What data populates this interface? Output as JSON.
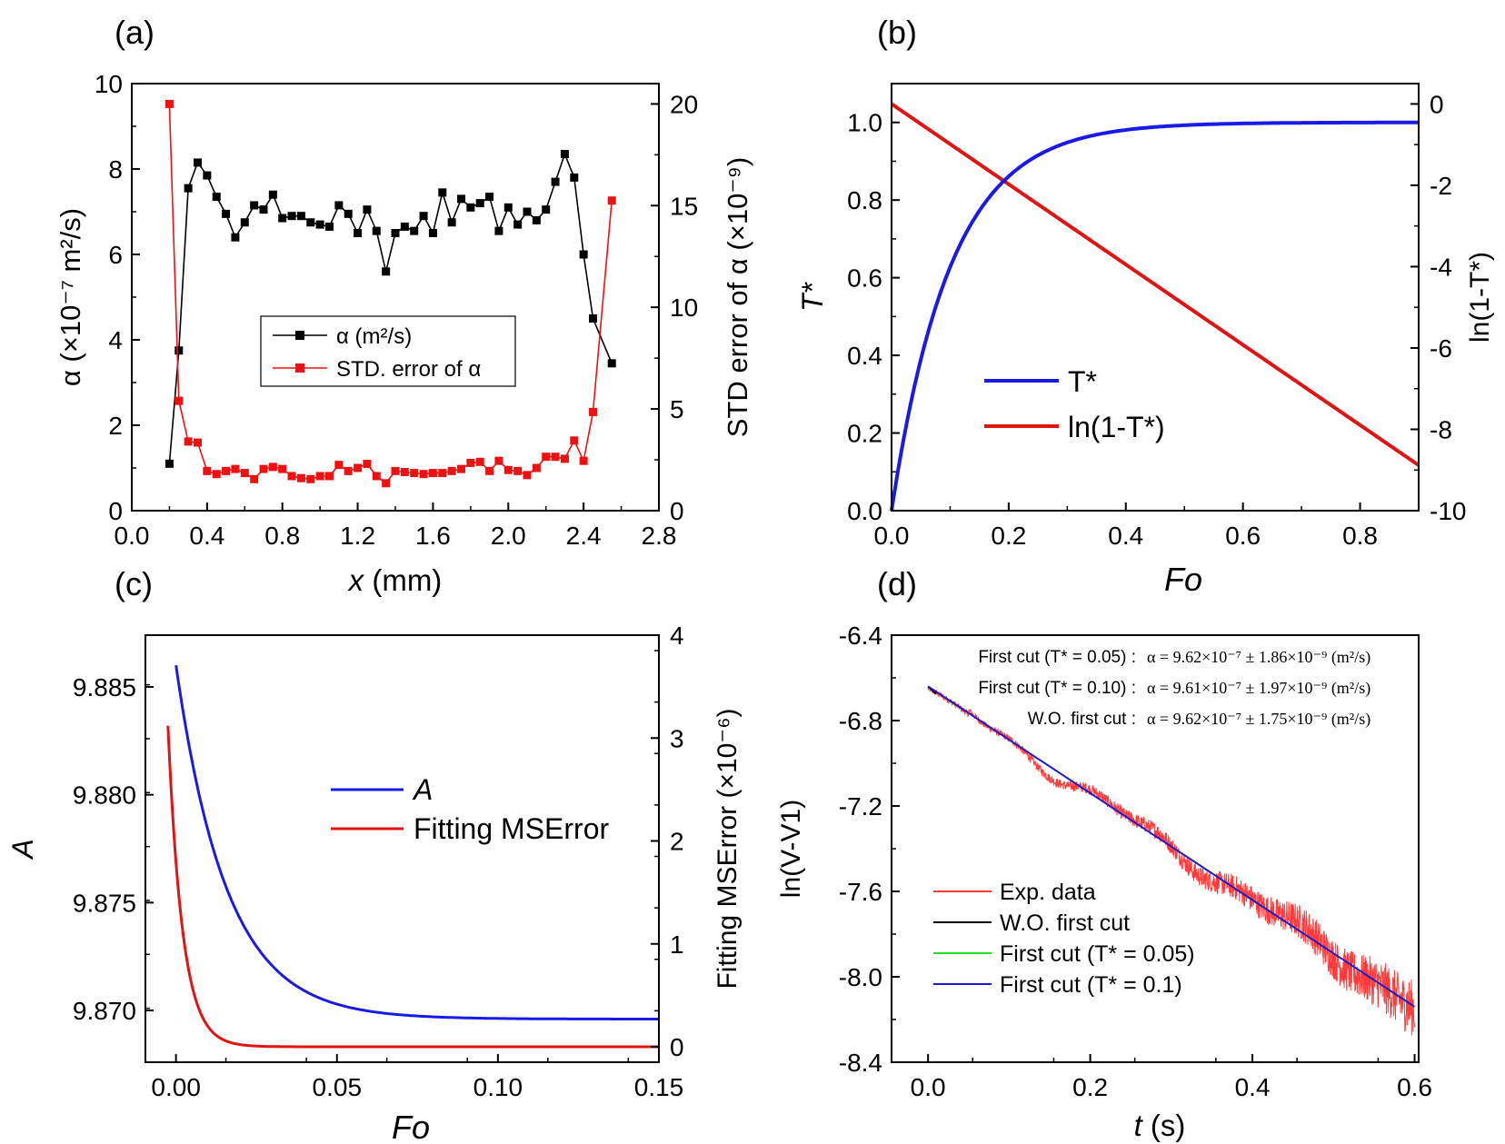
{
  "figure": {
    "panel_labels": [
      "(a)",
      "(b)",
      "(c)",
      "(d)"
    ]
  },
  "panels": {
    "a": {
      "xlabel": "x",
      "xunit": " (mm)",
      "ylabel_left": "α (×10⁻⁷ m²/s)",
      "ylabel_right": "STD error of α (×10⁻⁹)",
      "legend": [
        "α (m²/s)",
        "STD. error of α"
      ]
    },
    "b": {
      "xlabel": "Fo",
      "ylabel_left": "T*",
      "ylabel_right": "ln(1-T*)",
      "legend": [
        "T*",
        "ln(1-T*)"
      ]
    },
    "c": {
      "xlabel": "Fo",
      "ylabel_left": "A",
      "ylabel_right": "Fitting MSError (×10⁻⁶)",
      "legend": [
        "A",
        "Fitting MSError"
      ]
    },
    "d": {
      "xlabel": "t",
      "xunit": " (s)",
      "ylabel_left": "ln(V-V1)",
      "annotations": [
        {
          "label": "First cut (T* = 0.05) :",
          "formula": "α = 9.62×10⁻⁷ ± 1.86×10⁻⁹ (m²/s)"
        },
        {
          "label": "First cut (T* = 0.10) :",
          "formula": "α = 9.61×10⁻⁷ ± 1.97×10⁻⁹ (m²/s)"
        },
        {
          "label": "W.O. first cut :",
          "formula": "α = 9.62×10⁻⁷ ± 1.75×10⁻⁹ (m²/s)"
        }
      ],
      "legend": [
        "Exp. data",
        "W.O. first cut",
        "First cut (T* = 0.05)",
        "First cut (T* = 0.1)"
      ]
    }
  },
  "chart_data": [
    {
      "id": "a",
      "type": "line",
      "xlim": [
        0.0,
        2.8
      ],
      "xticks": [
        "0.0",
        "0.4",
        "0.8",
        "1.2",
        "1.6",
        "2.0",
        "2.4",
        "2.8"
      ],
      "ylim_left": [
        0,
        10
      ],
      "yticks_left": [
        "0",
        "2",
        "4",
        "6",
        "8",
        "10"
      ],
      "ylim_right": [
        0,
        21
      ],
      "yticks_right": [
        "0",
        "5",
        "10",
        "15",
        "20"
      ],
      "legend_position": "center",
      "series": [
        {
          "name": "α (m²/s)",
          "axis": "left",
          "color": "#000000",
          "marker": "square",
          "x": [
            0.2,
            0.25,
            0.3,
            0.35,
            0.4,
            0.45,
            0.5,
            0.55,
            0.6,
            0.65,
            0.7,
            0.75,
            0.8,
            0.85,
            0.9,
            0.95,
            1.0,
            1.05,
            1.1,
            1.15,
            1.2,
            1.25,
            1.3,
            1.35,
            1.4,
            1.45,
            1.5,
            1.55,
            1.6,
            1.65,
            1.7,
            1.75,
            1.8,
            1.85,
            1.9,
            1.95,
            2.0,
            2.05,
            2.1,
            2.15,
            2.2,
            2.25,
            2.3,
            2.35,
            2.4,
            2.45,
            2.55
          ],
          "y": [
            1.1,
            3.75,
            7.55,
            8.15,
            7.85,
            7.35,
            6.95,
            6.4,
            6.75,
            7.15,
            7.05,
            7.4,
            6.85,
            6.9,
            6.9,
            6.75,
            6.7,
            6.65,
            7.15,
            6.95,
            6.5,
            7.05,
            6.55,
            5.6,
            6.5,
            6.65,
            6.55,
            6.9,
            6.5,
            7.45,
            6.75,
            7.3,
            7.1,
            7.2,
            7.35,
            6.55,
            7.1,
            6.7,
            7.0,
            6.8,
            7.05,
            7.7,
            8.35,
            7.8,
            6.0,
            4.5,
            3.45
          ]
        },
        {
          "name": "STD. error of α",
          "axis": "right",
          "color": "#ee1111",
          "marker": "square",
          "x": [
            0.2,
            0.25,
            0.3,
            0.35,
            0.4,
            0.45,
            0.5,
            0.55,
            0.6,
            0.65,
            0.7,
            0.75,
            0.8,
            0.85,
            0.9,
            0.95,
            1.0,
            1.05,
            1.1,
            1.15,
            1.2,
            1.25,
            1.3,
            1.35,
            1.4,
            1.45,
            1.5,
            1.55,
            1.6,
            1.65,
            1.7,
            1.75,
            1.8,
            1.85,
            1.9,
            1.95,
            2.0,
            2.05,
            2.1,
            2.15,
            2.2,
            2.25,
            2.3,
            2.35,
            2.4,
            2.45,
            2.55
          ],
          "y": [
            20.0,
            5.4,
            3.4,
            3.35,
            1.95,
            1.8,
            1.95,
            2.05,
            1.85,
            1.55,
            2.05,
            2.15,
            2.05,
            1.7,
            1.6,
            1.55,
            1.7,
            1.7,
            2.25,
            1.95,
            2.1,
            2.3,
            1.7,
            1.35,
            1.95,
            1.9,
            1.85,
            1.8,
            1.85,
            1.85,
            1.95,
            2.05,
            2.35,
            2.4,
            1.95,
            2.45,
            2.0,
            1.95,
            1.75,
            2.1,
            2.65,
            2.65,
            2.55,
            3.45,
            2.45,
            4.85,
            15.25
          ]
        }
      ]
    },
    {
      "id": "b",
      "type": "line",
      "xlim": [
        0.0,
        0.9
      ],
      "xticks": [
        "0.0",
        "0.2",
        "0.4",
        "0.6",
        "0.8"
      ],
      "ylim_left": [
        0.0,
        1.1
      ],
      "yticks_left": [
        "0.0",
        "0.2",
        "0.4",
        "0.6",
        "0.8",
        "1.0"
      ],
      "ylim_right": [
        -10,
        0.5
      ],
      "yticks_right": [
        "0",
        "-2",
        "-4",
        "-6",
        "-8",
        "-10"
      ],
      "legend_position": "center",
      "series": [
        {
          "name": "T*",
          "axis": "left",
          "color": "#1a1ae6",
          "formula": "1-exp(-k*Fo)",
          "k": 9.87,
          "x_range": [
            0,
            0.9
          ]
        },
        {
          "name": "ln(1-T*)",
          "axis": "right",
          "color": "#e01414",
          "formula": "-k*Fo",
          "k": 9.87,
          "x_range": [
            0,
            0.9
          ]
        }
      ]
    },
    {
      "id": "c",
      "type": "line",
      "xlim": [
        -0.0095,
        0.15
      ],
      "xticks": [
        "0.00",
        "0.05",
        "0.10",
        "0.15"
      ],
      "ylim_left": [
        9.8676,
        9.8874
      ],
      "yticks_left": [
        "9.870",
        "9.875",
        "9.880",
        "9.885"
      ],
      "ylim_right": [
        -0.15,
        4.0
      ],
      "yticks_right": [
        "0",
        "1",
        "2",
        "3",
        "4"
      ],
      "legend_position": "center",
      "series": [
        {
          "name": "A",
          "axis": "left",
          "color": "#1a1ae6",
          "start": [
            0.0,
            9.886
          ],
          "end_value": 9.8696,
          "decay_scale": 0.0158,
          "x_range": [
            0.0,
            0.15
          ]
        },
        {
          "name": "Fitting MSError",
          "axis": "right",
          "color": "#e01414",
          "start": [
            -0.0025,
            3.12
          ],
          "end_value": 0.0,
          "decay_scale": 0.0045,
          "x_range": [
            -0.0025,
            0.15
          ]
        }
      ]
    },
    {
      "id": "d",
      "type": "line",
      "xlim": [
        -0.045,
        0.605
      ],
      "xticks": [
        "0.0",
        "0.2",
        "0.4",
        "0.6"
      ],
      "ylim_left": [
        -8.4,
        -6.4
      ],
      "yticks_left": [
        "-6.4",
        "-6.8",
        "-7.2",
        "-7.6",
        "-8.0",
        "-8.4"
      ],
      "legend_position": "bottom-left",
      "series": [
        {
          "name": "Exp. data",
          "color": "#ff3a3a",
          "kind": "noisy",
          "x_range": [
            0.0,
            0.6
          ],
          "fit_start": -6.65,
          "fit_slope": -2.48
        },
        {
          "name": "W.O. first cut",
          "color": "#000000",
          "x": [
            0.0,
            0.01
          ],
          "y": [
            -6.64,
            -6.675
          ]
        },
        {
          "name": "First cut (T* = 0.05)",
          "color": "#22dd22",
          "x": [
            0.025,
            0.035
          ],
          "y": [
            -6.705,
            -6.728
          ]
        },
        {
          "name": "First cut (T* = 0.1)",
          "color": "#1a1acc",
          "x": [
            0.0,
            0.6
          ],
          "y": [
            -6.64,
            -8.14
          ]
        }
      ]
    }
  ]
}
